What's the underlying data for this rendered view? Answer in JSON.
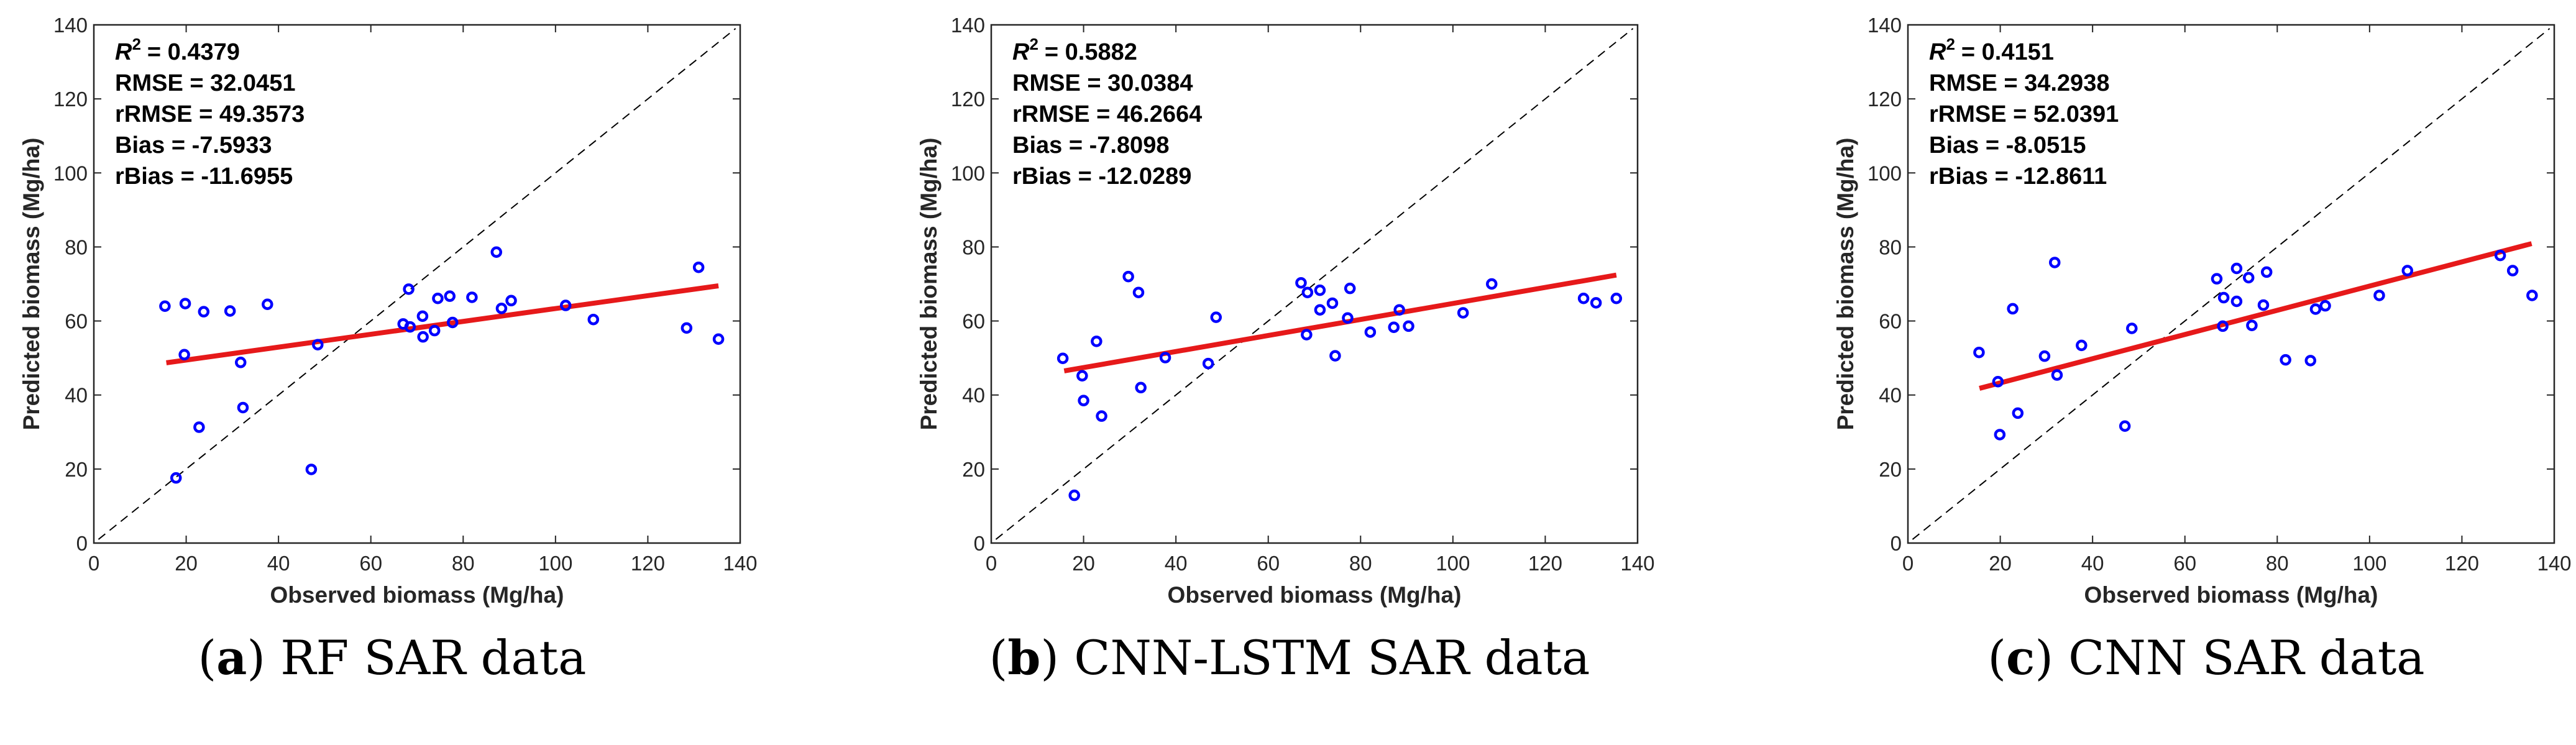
{
  "chart_data": [
    {
      "type": "scatter",
      "caption_letter": "a",
      "caption_text": "RF SAR data",
      "xlabel": "Observed biomass (Mg/ha)",
      "ylabel": "Predicted biomass (Mg/ha)",
      "xlim": [
        0,
        140
      ],
      "ylim": [
        0,
        140
      ],
      "xticks": [
        "0",
        "20",
        "40",
        "60",
        "80",
        "100",
        "120",
        "140"
      ],
      "yticks": [
        "0",
        "20",
        "40",
        "60",
        "80",
        "100",
        "120",
        "140"
      ],
      "stats": {
        "r2_symbol": "R",
        "r2_sup": "2",
        "r2": "= 0.4379",
        "lines": [
          "RMSE = 32.0451",
          "rRMSE = 49.3573",
          "Bias = -7.5933",
          "rBias = -11.6955"
        ]
      },
      "one_to_one_line": true,
      "fit_line": {
        "x": [
          15.7,
          135.3
        ],
        "y": [
          48.7,
          69.5
        ]
      },
      "points": [
        [
          15.4,
          64.0
        ],
        [
          19.8,
          64.7
        ],
        [
          23.8,
          62.5
        ],
        [
          29.5,
          62.7
        ],
        [
          37.6,
          64.5
        ],
        [
          19.6,
          50.9
        ],
        [
          31.8,
          48.8
        ],
        [
          32.3,
          36.6
        ],
        [
          22.8,
          31.3
        ],
        [
          17.8,
          17.6
        ],
        [
          47.1,
          19.9
        ],
        [
          48.5,
          53.6
        ],
        [
          67.0,
          59.2
        ],
        [
          68.5,
          58.4
        ],
        [
          68.2,
          68.6
        ],
        [
          71.2,
          61.3
        ],
        [
          71.3,
          55.7
        ],
        [
          73.8,
          57.4
        ],
        [
          74.5,
          66.1
        ],
        [
          77.1,
          66.7
        ],
        [
          77.7,
          59.6
        ],
        [
          81.9,
          66.4
        ],
        [
          87.2,
          78.6
        ],
        [
          88.3,
          63.4
        ],
        [
          90.4,
          65.5
        ],
        [
          102.2,
          64.2
        ],
        [
          108.2,
          60.4
        ],
        [
          128.4,
          58.1
        ],
        [
          131.0,
          74.5
        ],
        [
          135.3,
          55.1
        ]
      ]
    },
    {
      "type": "scatter",
      "caption_letter": "b",
      "caption_text": "CNN-LSTM SAR data",
      "xlabel": "Observed biomass (Mg/ha)",
      "ylabel": "Predicted biomass (Mg/ha)",
      "xlim": [
        0,
        140
      ],
      "ylim": [
        0,
        140
      ],
      "xticks": [
        "0",
        "20",
        "40",
        "60",
        "80",
        "100",
        "120",
        "140"
      ],
      "yticks": [
        "0",
        "20",
        "40",
        "60",
        "80",
        "100",
        "120",
        "140"
      ],
      "stats": {
        "r2_symbol": "R",
        "r2_sup": "2",
        "r2": "= 0.5882",
        "lines": [
          "RMSE = 30.0384",
          "rRMSE = 46.2664",
          "Bias = -7.8098",
          "rBias = -12.0289"
        ]
      },
      "one_to_one_line": true,
      "fit_line": {
        "x": [
          15.8,
          135.4
        ],
        "y": [
          46.5,
          72.4
        ]
      },
      "points": [
        [
          15.5,
          49.9
        ],
        [
          19.7,
          45.2
        ],
        [
          20.0,
          38.5
        ],
        [
          23.9,
          34.3
        ],
        [
          22.8,
          54.5
        ],
        [
          18.0,
          12.9
        ],
        [
          29.7,
          72.0
        ],
        [
          31.9,
          67.7
        ],
        [
          32.4,
          42.0
        ],
        [
          37.7,
          50.1
        ],
        [
          47.0,
          48.5
        ],
        [
          48.7,
          61.0
        ],
        [
          67.1,
          70.3
        ],
        [
          68.5,
          67.7
        ],
        [
          68.3,
          56.3
        ],
        [
          71.2,
          68.3
        ],
        [
          71.2,
          63.0
        ],
        [
          73.9,
          64.8
        ],
        [
          74.5,
          50.6
        ],
        [
          77.2,
          60.8
        ],
        [
          77.7,
          68.8
        ],
        [
          82.1,
          57.0
        ],
        [
          87.2,
          58.3
        ],
        [
          88.4,
          63.0
        ],
        [
          90.4,
          58.6
        ],
        [
          102.2,
          62.2
        ],
        [
          108.4,
          70.0
        ],
        [
          128.3,
          66.1
        ],
        [
          131.0,
          64.9
        ],
        [
          135.4,
          66.1
        ]
      ]
    },
    {
      "type": "scatter",
      "caption_letter": "c",
      "caption_text": "CNN SAR data",
      "xlabel": "Observed biomass (Mg/ha)",
      "ylabel": "Predicted biomass (Mg/ha)",
      "xlim": [
        0,
        140
      ],
      "ylim": [
        0,
        140
      ],
      "xticks": [
        "0",
        "20",
        "40",
        "60",
        "80",
        "100",
        "120",
        "140"
      ],
      "yticks": [
        "0",
        "20",
        "40",
        "60",
        "80",
        "100",
        "120",
        "140"
      ],
      "stats": {
        "r2_symbol": "R",
        "r2_sup": "2",
        "r2": "= 0.4151",
        "lines": [
          "RMSE = 34.2938",
          "rRMSE = 52.0391",
          "Bias = -8.0515",
          "rBias = -12.8611"
        ]
      },
      "one_to_one_line": true,
      "fit_line": {
        "x": [
          15.5,
          135.1
        ],
        "y": [
          41.8,
          80.9
        ]
      },
      "points": [
        [
          15.4,
          51.5
        ],
        [
          19.5,
          43.6
        ],
        [
          19.9,
          29.3
        ],
        [
          22.7,
          63.3
        ],
        [
          23.8,
          35.1
        ],
        [
          29.6,
          50.5
        ],
        [
          31.8,
          75.8
        ],
        [
          32.3,
          45.4
        ],
        [
          37.6,
          53.4
        ],
        [
          47.0,
          31.6
        ],
        [
          48.5,
          58.0
        ],
        [
          66.9,
          71.4
        ],
        [
          68.4,
          66.3
        ],
        [
          68.2,
          58.6
        ],
        [
          71.2,
          74.2
        ],
        [
          71.2,
          65.3
        ],
        [
          73.8,
          71.7
        ],
        [
          74.5,
          58.8
        ],
        [
          77.0,
          64.3
        ],
        [
          77.7,
          73.2
        ],
        [
          81.8,
          49.5
        ],
        [
          87.2,
          49.3
        ],
        [
          88.3,
          63.2
        ],
        [
          90.4,
          64.1
        ],
        [
          102.1,
          66.9
        ],
        [
          108.2,
          73.6
        ],
        [
          128.3,
          77.7
        ],
        [
          131.0,
          73.6
        ],
        [
          135.2,
          66.9
        ]
      ]
    }
  ],
  "colors": {
    "points": "#0000ff",
    "fit_line": "#e6191a",
    "one_to_one": "#000000",
    "axis": "#262626"
  }
}
